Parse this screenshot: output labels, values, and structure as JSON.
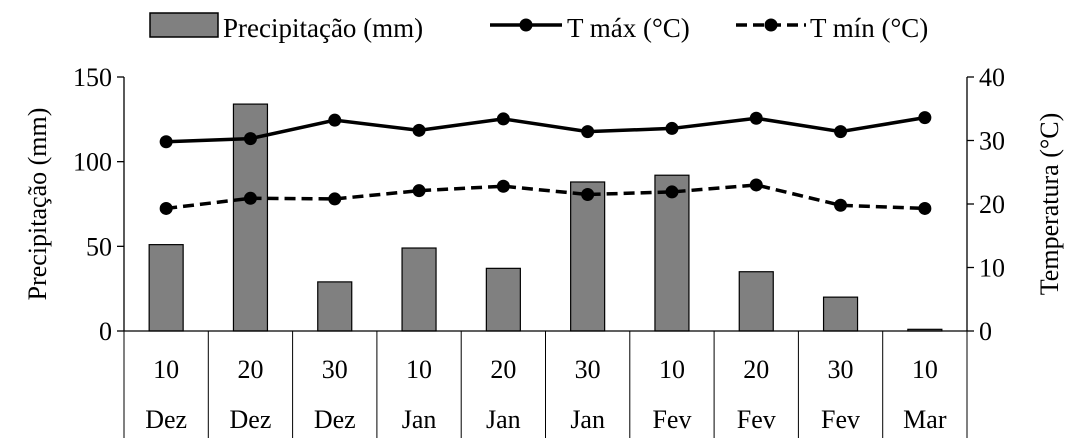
{
  "chart_data": {
    "type": "bar+line",
    "categories": [
      {
        "day": "10",
        "month": "Dez"
      },
      {
        "day": "20",
        "month": "Dez"
      },
      {
        "day": "30",
        "month": "Dez"
      },
      {
        "day": "10",
        "month": "Jan"
      },
      {
        "day": "20",
        "month": "Jan"
      },
      {
        "day": "30",
        "month": "Jan"
      },
      {
        "day": "10",
        "month": "Fev"
      },
      {
        "day": "20",
        "month": "Fev"
      },
      {
        "day": "30",
        "month": "Fev"
      },
      {
        "day": "10",
        "month": "Mar"
      }
    ],
    "bar_series": {
      "name": "Precipitação (mm)",
      "color": "#808080",
      "values": [
        51,
        134,
        29,
        49,
        37,
        88,
        92,
        35,
        20,
        1
      ]
    },
    "line_series": [
      {
        "name": "T máx (°C)",
        "style": "solid",
        "color": "#000000",
        "values": [
          29.8,
          30.3,
          33.2,
          31.6,
          33.4,
          31.4,
          31.9,
          33.5,
          31.4,
          33.6
        ]
      },
      {
        "name": "T mín (°C)",
        "style": "dashed",
        "color": "#000000",
        "values": [
          19.3,
          20.9,
          20.8,
          22.1,
          22.8,
          21.5,
          21.9,
          23.0,
          19.8,
          19.3
        ]
      }
    ],
    "y_left": {
      "label": "Precipitação (mm)",
      "min": 0,
      "max": 150,
      "ticks": [
        0,
        50,
        100,
        150
      ]
    },
    "y_right": {
      "label": "Temperatura (°C)",
      "min": 0,
      "max": 40,
      "ticks": [
        0,
        10,
        20,
        30,
        40
      ]
    },
    "grid": false,
    "legend_position": "top"
  }
}
